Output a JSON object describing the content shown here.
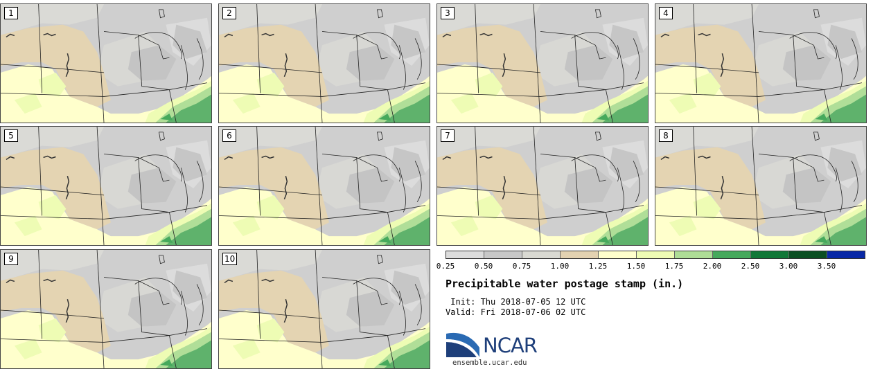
{
  "panels": [
    {
      "label": "1"
    },
    {
      "label": "2"
    },
    {
      "label": "3"
    },
    {
      "label": "4"
    },
    {
      "label": "5"
    },
    {
      "label": "6"
    },
    {
      "label": "7"
    },
    {
      "label": "8"
    },
    {
      "label": "9"
    },
    {
      "label": "10"
    }
  ],
  "colorbar": {
    "colors": [
      "#dcdcdc",
      "#c8c8c8",
      "#d9d9d2",
      "#e3d2b1",
      "#ffffcc",
      "#eefcb4",
      "#aedd96",
      "#46a95c",
      "#117838",
      "#0b4f22",
      "#0828a6"
    ],
    "tick_labels": [
      "0.25",
      "0.50",
      "0.75",
      "1.00",
      "1.25",
      "1.50",
      "1.75",
      "2.00",
      "2.50",
      "3.00",
      "3.50"
    ]
  },
  "title": "Precipitable water postage stamp (in.)",
  "init_line": " Init: Thu 2018-07-05 12 UTC",
  "valid_line": "Valid: Fri 2018-07-06 02 UTC",
  "logo": {
    "text": "NCAR",
    "url": "ensemble.ucar.edu"
  }
}
